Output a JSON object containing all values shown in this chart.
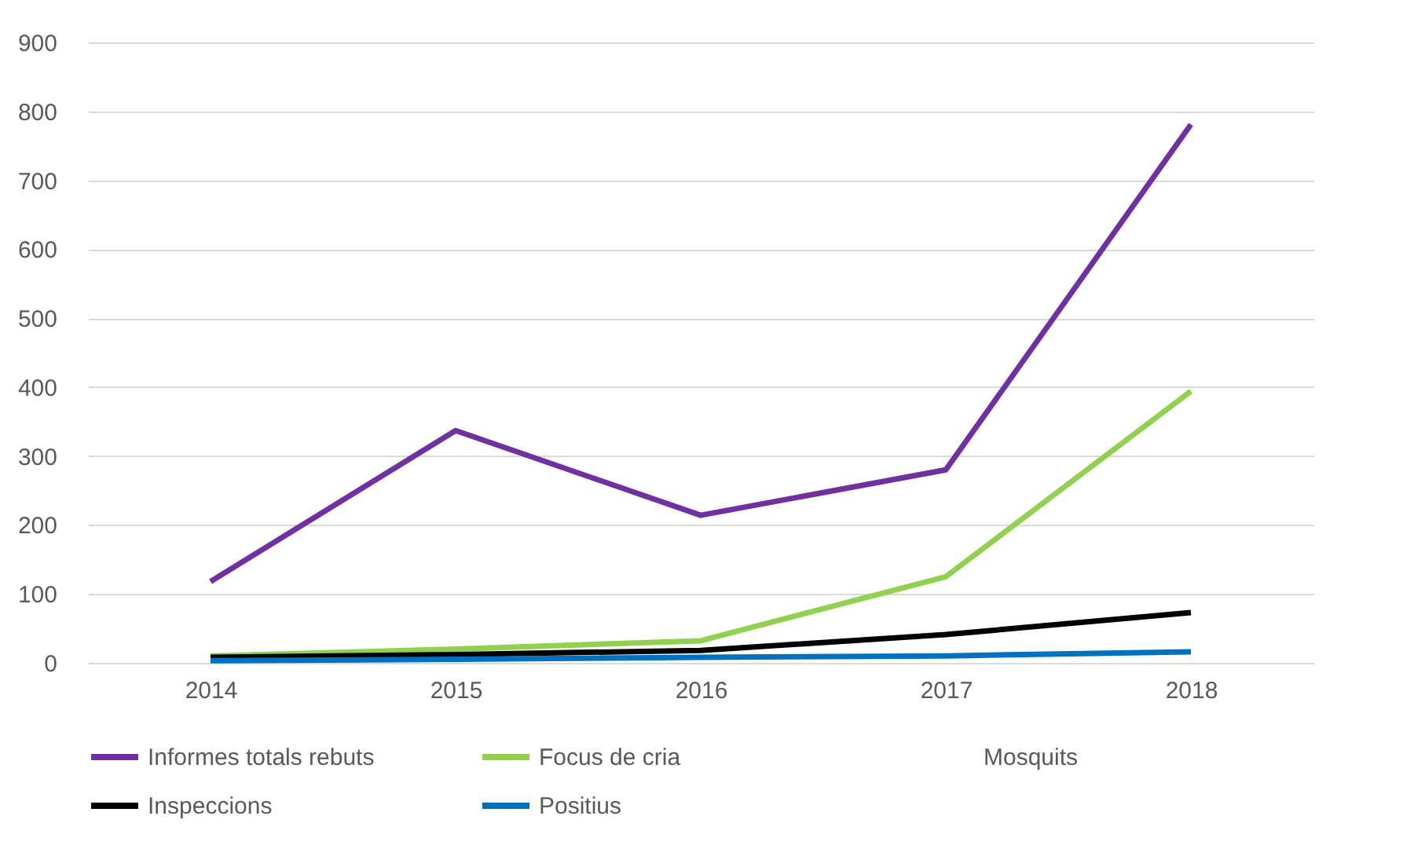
{
  "chart_data": {
    "type": "line",
    "categories": [
      "2014",
      "2015",
      "2016",
      "2017",
      "2018"
    ],
    "series": [
      {
        "name": "Informes totals rebuts",
        "color": "#7030a0",
        "values": [
          118,
          337,
          214,
          280,
          781
        ]
      },
      {
        "name": "Focus de cria",
        "color": "#92d050",
        "values": [
          10,
          20,
          32,
          125,
          394
        ]
      },
      {
        "name": "Inspeccions",
        "color": "#000000",
        "values": [
          8,
          12,
          18,
          41,
          73
        ]
      },
      {
        "name": "Positius",
        "color": "#0070c0",
        "values": [
          3,
          5,
          8,
          10,
          16
        ]
      }
    ],
    "ylim": [
      0,
      900
    ],
    "yticks": [
      0,
      100,
      200,
      300,
      400,
      500,
      600,
      700,
      800,
      900
    ],
    "grid": "y",
    "legend": "bottom",
    "marker": "none",
    "line_style": "solid",
    "annotations": [
      "Mosquits"
    ]
  }
}
